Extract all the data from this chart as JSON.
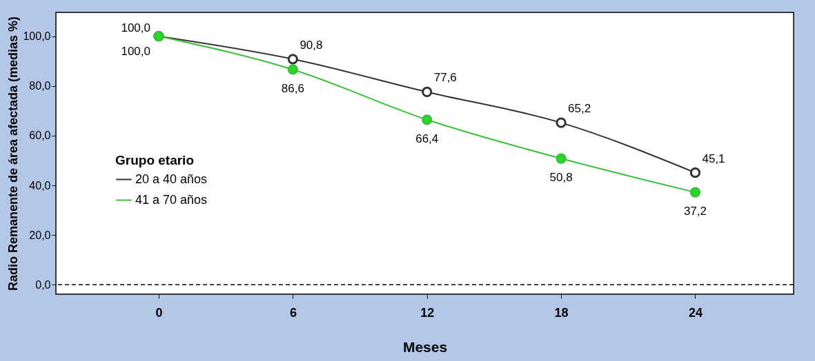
{
  "chart_data": {
    "type": "line",
    "xlabel": "Meses",
    "ylabel": "Radio Remanente de área afectada (medias %)",
    "legend_title": "Grupo etario",
    "x": [
      0,
      6,
      12,
      18,
      24
    ],
    "series": [
      {
        "name": "20 a 40 años",
        "color": "#333333",
        "values": [
          100.0,
          90.8,
          77.6,
          65.2,
          45.1
        ],
        "value_labels": [
          "100,0",
          "90,8",
          "77,6",
          "65,2",
          "45,1"
        ]
      },
      {
        "name": "41 a 70 años",
        "color": "#3cbf3c",
        "values": [
          100.0,
          86.6,
          66.4,
          50.8,
          37.2
        ],
        "value_labels": [
          "100,0",
          "86,6",
          "66,4",
          "50,8",
          "37,2"
        ]
      }
    ],
    "xlim": [
      -4.6,
      28.4
    ],
    "xticks": [
      0,
      6,
      12,
      18,
      24
    ],
    "ylim": [
      -3.8,
      109.6
    ],
    "yticks": [
      {
        "value": 0,
        "label": "0,0"
      },
      {
        "value": 20,
        "label": "20,0"
      },
      {
        "value": 40,
        "label": "40,0"
      },
      {
        "value": 60,
        "label": "60,0"
      },
      {
        "value": 80,
        "label": "80,0"
      },
      {
        "value": 100,
        "label": "100,0"
      }
    ],
    "ref_lines": [
      {
        "axis": "y",
        "value": 0,
        "color": "#000000",
        "line_style": "dashed"
      }
    ],
    "grid": false,
    "legend": "left",
    "marker": "circle",
    "line_style": "solid"
  }
}
